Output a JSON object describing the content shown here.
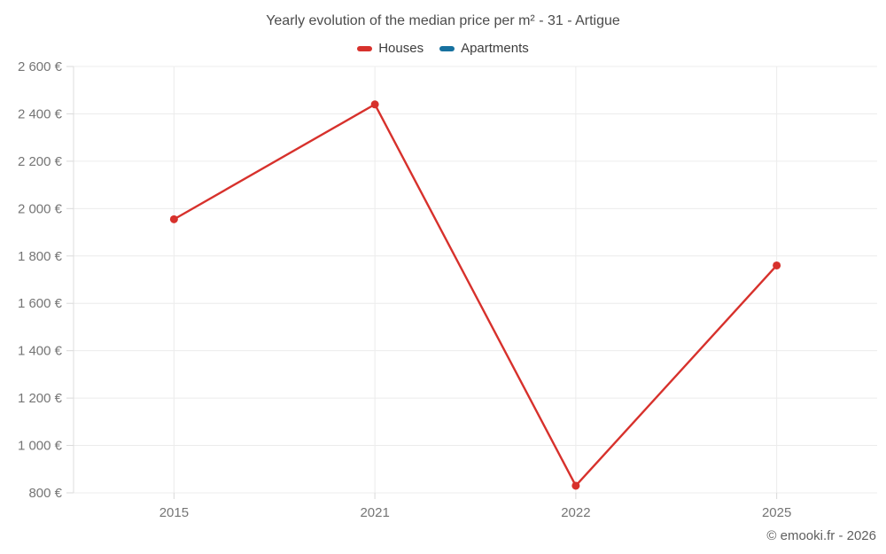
{
  "title": "Yearly evolution of the median price per m² - 31 - Artigue",
  "legend": {
    "items": [
      {
        "label": "Houses",
        "color": "#d7312c"
      },
      {
        "label": "Apartments",
        "color": "#17719f"
      }
    ]
  },
  "footer": {
    "credit": "© emooki.fr - 2026"
  },
  "chart_data": {
    "type": "line",
    "title": "Yearly evolution of the median price per m² - 31 - Artigue",
    "categories": [
      "2015",
      "2021",
      "2022",
      "2025"
    ],
    "series": [
      {
        "name": "Houses",
        "color": "#d7312c",
        "values": [
          1955,
          2440,
          830,
          1760
        ]
      },
      {
        "name": "Apartments",
        "color": "#17719f",
        "values": []
      }
    ],
    "xlabel": "",
    "ylabel": "",
    "ylim": [
      800,
      2600
    ],
    "ytick_step": 200,
    "ytick_labels": [
      "800 €",
      "1 000 €",
      "1 200 €",
      "1 400 €",
      "1 600 €",
      "1 800 €",
      "2 000 €",
      "2 200 €",
      "2 400 €",
      "2 600 €"
    ],
    "grid": true,
    "legend_position": "top"
  }
}
